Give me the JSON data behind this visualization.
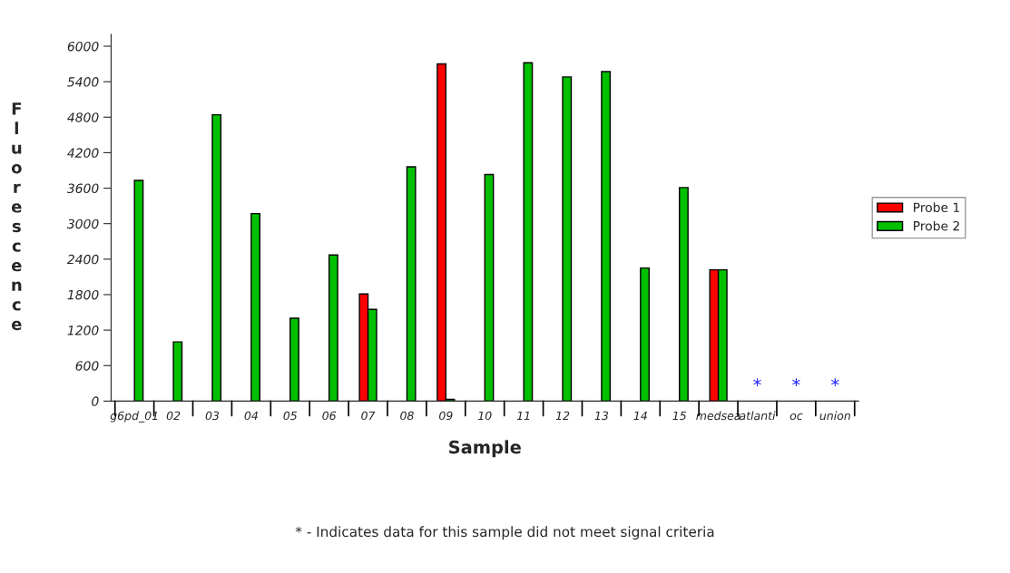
{
  "chart_data": {
    "type": "bar",
    "xlabel": "Sample",
    "ylabel": "Fluorescence",
    "categories": [
      "g6pd_01",
      "02",
      "03",
      "04",
      "05",
      "06",
      "07",
      "08",
      "09",
      "10",
      "11",
      "12",
      "13",
      "14",
      "15",
      "medsea",
      "atlanti",
      "oc",
      "union"
    ],
    "series": [
      {
        "name": "Probe 1",
        "color": "#ff0000",
        "values": [
          null,
          null,
          null,
          null,
          null,
          null,
          1810,
          null,
          5700,
          null,
          null,
          null,
          null,
          null,
          null,
          2220,
          null,
          null,
          null
        ]
      },
      {
        "name": "Probe 2",
        "color": "#00c000",
        "values": [
          3730,
          1000,
          4840,
          3170,
          1400,
          2470,
          1550,
          3960,
          30,
          3830,
          5720,
          5480,
          5570,
          2250,
          3610,
          2220,
          null,
          null,
          null
        ]
      }
    ],
    "ylim": [
      0,
      6200
    ],
    "yticks": [
      0,
      600,
      1200,
      1800,
      2400,
      3000,
      3600,
      4200,
      4800,
      5400,
      6000
    ],
    "legend": "right",
    "grid": false,
    "annotations": [
      "*",
      "*",
      "*",
      "* - Indicates data for this sample did not meet signal criteria"
    ]
  }
}
